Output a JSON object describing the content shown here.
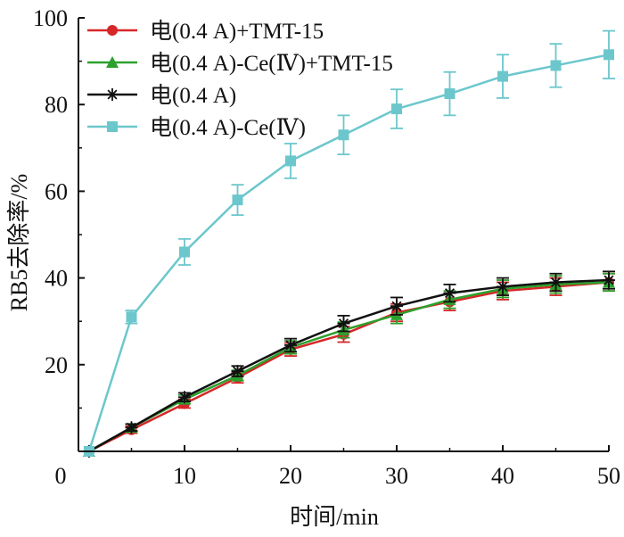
{
  "chart_data": {
    "type": "line",
    "title": "",
    "xlabel": "时间/min",
    "ylabel": "RB5去除率/%",
    "xlim": [
      0,
      50
    ],
    "ylim": [
      0,
      100
    ],
    "x_ticks": [
      0,
      10,
      20,
      30,
      40,
      50
    ],
    "y_ticks": [
      20,
      40,
      60,
      80,
      100
    ],
    "x_tick_labels": [
      "0",
      "10",
      "20",
      "30",
      "40",
      "50"
    ],
    "y_tick_labels": [
      "20",
      "40",
      "60",
      "80",
      "100"
    ],
    "grid": false,
    "legend_position": "top-left",
    "x": [
      1,
      5,
      10,
      15,
      20,
      25,
      30,
      35,
      40,
      45,
      50
    ],
    "series": [
      {
        "name": "电(0.4 A)+TMT-15",
        "color": "#d62728",
        "marker": "circle",
        "values": [
          0,
          5,
          11,
          17,
          23.5,
          27,
          32,
          34.5,
          37,
          38,
          39
        ],
        "errors": [
          0,
          0.8,
          1,
          1.2,
          1.5,
          1.8,
          2,
          2,
          2,
          2,
          2
        ]
      },
      {
        "name": "电(0.4 A)-Ce(Ⅳ)+TMT-15",
        "color": "#2ca02c",
        "marker": "triangle",
        "values": [
          0,
          5.5,
          12,
          17.5,
          24,
          28,
          31.5,
          35,
          37.5,
          38.5,
          39
        ],
        "errors": [
          0,
          0.8,
          1,
          1.2,
          1.5,
          1.8,
          2,
          2,
          2,
          2,
          2
        ]
      },
      {
        "name": "电(0.4 A)",
        "color": "#111111",
        "marker": "star",
        "values": [
          0,
          5.5,
          12.5,
          18.5,
          24.5,
          29.5,
          33.5,
          36.5,
          38,
          39,
          39.5
        ],
        "errors": [
          0,
          0.8,
          1,
          1.2,
          1.5,
          1.8,
          2,
          2,
          2,
          2,
          2
        ]
      },
      {
        "name": "电(0.4 A)-Ce(Ⅳ)",
        "color": "#6cc7cc",
        "marker": "square",
        "values": [
          0,
          31,
          46,
          58,
          67,
          73,
          79,
          82.5,
          86.5,
          89,
          91.5
        ],
        "errors": [
          0,
          1.5,
          3,
          3.5,
          4,
          4.5,
          4.5,
          5,
          5,
          5,
          5.5
        ]
      }
    ]
  }
}
